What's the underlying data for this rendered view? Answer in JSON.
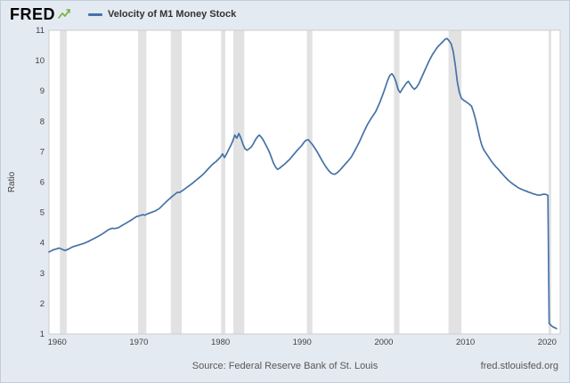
{
  "header": {
    "brand": "FRED"
  },
  "footer": {
    "source": "Source: Federal Reserve Bank of St. Louis",
    "site": "fred.stlouisfed.org"
  },
  "colors": {
    "page_bg": "#e4eaf2",
    "plot_bg": "#ffffff",
    "plot_border": "#cccccc",
    "recession_band": "#e2e2e2",
    "line": "#4572a7",
    "tick_text": "#404040",
    "brand_green": "#7ab648"
  },
  "chart_data": {
    "type": "line",
    "title": "Velocity of M1 Money Stock",
    "ylabel": "Ratio",
    "xlabel": "",
    "xlim": [
      1959,
      2021.6
    ],
    "ylim": [
      1,
      11
    ],
    "yticks": [
      1,
      2,
      3,
      4,
      5,
      6,
      7,
      8,
      9,
      10,
      11
    ],
    "xticks": [
      1960,
      1970,
      1980,
      1990,
      2000,
      2010,
      2020
    ],
    "grid": false,
    "legend_position": "top-header",
    "recessions": [
      [
        1960.33,
        1961.17
      ],
      [
        1969.92,
        1970.92
      ],
      [
        1973.92,
        1975.25
      ],
      [
        1980.08,
        1980.58
      ],
      [
        1981.58,
        1982.92
      ],
      [
        1990.58,
        1991.25
      ],
      [
        2001.25,
        2001.92
      ],
      [
        2007.92,
        2009.5
      ],
      [
        2020.17,
        2020.42
      ]
    ],
    "series": [
      {
        "name": "Velocity of M1 Money Stock",
        "color": "#4572a7",
        "points": [
          [
            1959.0,
            3.7
          ],
          [
            1959.25,
            3.73
          ],
          [
            1959.5,
            3.77
          ],
          [
            1959.75,
            3.79
          ],
          [
            1960.0,
            3.81
          ],
          [
            1960.25,
            3.83
          ],
          [
            1960.5,
            3.8
          ],
          [
            1960.75,
            3.77
          ],
          [
            1961.0,
            3.75
          ],
          [
            1961.25,
            3.78
          ],
          [
            1961.5,
            3.81
          ],
          [
            1961.75,
            3.85
          ],
          [
            1962.0,
            3.88
          ],
          [
            1962.5,
            3.92
          ],
          [
            1963.0,
            3.96
          ],
          [
            1963.5,
            4.01
          ],
          [
            1964.0,
            4.07
          ],
          [
            1964.5,
            4.14
          ],
          [
            1965.0,
            4.21
          ],
          [
            1965.5,
            4.29
          ],
          [
            1966.0,
            4.38
          ],
          [
            1966.25,
            4.43
          ],
          [
            1966.5,
            4.46
          ],
          [
            1966.75,
            4.48
          ],
          [
            1967.0,
            4.47
          ],
          [
            1967.5,
            4.5
          ],
          [
            1968.0,
            4.58
          ],
          [
            1968.5,
            4.66
          ],
          [
            1969.0,
            4.74
          ],
          [
            1969.5,
            4.83
          ],
          [
            1969.75,
            4.87
          ],
          [
            1970.0,
            4.89
          ],
          [
            1970.25,
            4.91
          ],
          [
            1970.5,
            4.93
          ],
          [
            1970.75,
            4.91
          ],
          [
            1971.0,
            4.95
          ],
          [
            1971.5,
            5.0
          ],
          [
            1972.0,
            5.05
          ],
          [
            1972.5,
            5.13
          ],
          [
            1973.0,
            5.26
          ],
          [
            1973.5,
            5.39
          ],
          [
            1974.0,
            5.51
          ],
          [
            1974.5,
            5.62
          ],
          [
            1974.75,
            5.67
          ],
          [
            1975.0,
            5.66
          ],
          [
            1975.5,
            5.75
          ],
          [
            1976.0,
            5.85
          ],
          [
            1976.5,
            5.95
          ],
          [
            1977.0,
            6.06
          ],
          [
            1977.5,
            6.17
          ],
          [
            1978.0,
            6.29
          ],
          [
            1978.5,
            6.44
          ],
          [
            1979.0,
            6.58
          ],
          [
            1979.5,
            6.69
          ],
          [
            1979.75,
            6.76
          ],
          [
            1980.0,
            6.83
          ],
          [
            1980.25,
            6.93
          ],
          [
            1980.5,
            6.81
          ],
          [
            1980.75,
            6.93
          ],
          [
            1981.0,
            7.07
          ],
          [
            1981.25,
            7.2
          ],
          [
            1981.5,
            7.35
          ],
          [
            1981.75,
            7.55
          ],
          [
            1982.0,
            7.45
          ],
          [
            1982.25,
            7.6
          ],
          [
            1982.5,
            7.45
          ],
          [
            1982.75,
            7.25
          ],
          [
            1983.0,
            7.1
          ],
          [
            1983.25,
            7.05
          ],
          [
            1983.5,
            7.1
          ],
          [
            1983.75,
            7.15
          ],
          [
            1984.0,
            7.25
          ],
          [
            1984.25,
            7.38
          ],
          [
            1984.5,
            7.48
          ],
          [
            1984.75,
            7.55
          ],
          [
            1985.0,
            7.48
          ],
          [
            1985.25,
            7.38
          ],
          [
            1985.5,
            7.25
          ],
          [
            1985.75,
            7.12
          ],
          [
            1986.0,
            6.98
          ],
          [
            1986.25,
            6.8
          ],
          [
            1986.5,
            6.62
          ],
          [
            1986.75,
            6.5
          ],
          [
            1987.0,
            6.42
          ],
          [
            1987.25,
            6.46
          ],
          [
            1987.5,
            6.52
          ],
          [
            1987.75,
            6.57
          ],
          [
            1988.0,
            6.63
          ],
          [
            1988.5,
            6.76
          ],
          [
            1989.0,
            6.92
          ],
          [
            1989.5,
            7.08
          ],
          [
            1990.0,
            7.22
          ],
          [
            1990.25,
            7.32
          ],
          [
            1990.5,
            7.38
          ],
          [
            1990.75,
            7.4
          ],
          [
            1991.0,
            7.32
          ],
          [
            1991.25,
            7.24
          ],
          [
            1991.5,
            7.14
          ],
          [
            1991.75,
            7.04
          ],
          [
            1992.0,
            6.92
          ],
          [
            1992.25,
            6.8
          ],
          [
            1992.5,
            6.68
          ],
          [
            1992.75,
            6.57
          ],
          [
            1993.0,
            6.47
          ],
          [
            1993.25,
            6.38
          ],
          [
            1993.5,
            6.31
          ],
          [
            1993.75,
            6.27
          ],
          [
            1994.0,
            6.26
          ],
          [
            1994.25,
            6.3
          ],
          [
            1994.5,
            6.36
          ],
          [
            1994.75,
            6.43
          ],
          [
            1995.0,
            6.51
          ],
          [
            1995.5,
            6.66
          ],
          [
            1996.0,
            6.82
          ],
          [
            1996.5,
            7.06
          ],
          [
            1997.0,
            7.32
          ],
          [
            1997.5,
            7.62
          ],
          [
            1998.0,
            7.9
          ],
          [
            1998.5,
            8.12
          ],
          [
            1999.0,
            8.32
          ],
          [
            1999.5,
            8.62
          ],
          [
            2000.0,
            8.97
          ],
          [
            2000.25,
            9.17
          ],
          [
            2000.5,
            9.37
          ],
          [
            2000.75,
            9.52
          ],
          [
            2001.0,
            9.57
          ],
          [
            2001.25,
            9.47
          ],
          [
            2001.5,
            9.3
          ],
          [
            2001.75,
            9.05
          ],
          [
            2002.0,
            8.95
          ],
          [
            2002.25,
            9.06
          ],
          [
            2002.5,
            9.16
          ],
          [
            2002.75,
            9.26
          ],
          [
            2003.0,
            9.32
          ],
          [
            2003.25,
            9.22
          ],
          [
            2003.5,
            9.12
          ],
          [
            2003.75,
            9.06
          ],
          [
            2004.0,
            9.12
          ],
          [
            2004.25,
            9.22
          ],
          [
            2004.5,
            9.37
          ],
          [
            2004.75,
            9.52
          ],
          [
            2005.0,
            9.67
          ],
          [
            2005.25,
            9.82
          ],
          [
            2005.5,
            9.97
          ],
          [
            2005.75,
            10.1
          ],
          [
            2006.0,
            10.22
          ],
          [
            2006.25,
            10.32
          ],
          [
            2006.5,
            10.42
          ],
          [
            2006.75,
            10.5
          ],
          [
            2007.0,
            10.56
          ],
          [
            2007.25,
            10.63
          ],
          [
            2007.5,
            10.7
          ],
          [
            2007.75,
            10.73
          ],
          [
            2008.0,
            10.65
          ],
          [
            2008.25,
            10.55
          ],
          [
            2008.5,
            10.3
          ],
          [
            2008.75,
            9.85
          ],
          [
            2009.0,
            9.3
          ],
          [
            2009.25,
            8.95
          ],
          [
            2009.5,
            8.76
          ],
          [
            2009.75,
            8.7
          ],
          [
            2010.0,
            8.66
          ],
          [
            2010.25,
            8.61
          ],
          [
            2010.5,
            8.56
          ],
          [
            2010.75,
            8.5
          ],
          [
            2011.0,
            8.3
          ],
          [
            2011.25,
            8.05
          ],
          [
            2011.5,
            7.76
          ],
          [
            2011.75,
            7.46
          ],
          [
            2012.0,
            7.21
          ],
          [
            2012.25,
            7.06
          ],
          [
            2012.5,
            6.96
          ],
          [
            2012.75,
            6.86
          ],
          [
            2013.0,
            6.76
          ],
          [
            2013.25,
            6.66
          ],
          [
            2013.5,
            6.58
          ],
          [
            2013.75,
            6.5
          ],
          [
            2014.0,
            6.43
          ],
          [
            2014.25,
            6.35
          ],
          [
            2014.5,
            6.28
          ],
          [
            2014.75,
            6.2
          ],
          [
            2015.0,
            6.13
          ],
          [
            2015.25,
            6.06
          ],
          [
            2015.5,
            6.0
          ],
          [
            2015.75,
            5.95
          ],
          [
            2016.0,
            5.9
          ],
          [
            2016.25,
            5.86
          ],
          [
            2016.5,
            5.81
          ],
          [
            2016.75,
            5.78
          ],
          [
            2017.0,
            5.75
          ],
          [
            2017.25,
            5.72
          ],
          [
            2017.5,
            5.7
          ],
          [
            2017.75,
            5.67
          ],
          [
            2018.0,
            5.65
          ],
          [
            2018.25,
            5.62
          ],
          [
            2018.5,
            5.6
          ],
          [
            2018.75,
            5.58
          ],
          [
            2019.0,
            5.57
          ],
          [
            2019.25,
            5.58
          ],
          [
            2019.5,
            5.6
          ],
          [
            2019.75,
            5.6
          ],
          [
            2020.0,
            5.58
          ],
          [
            2020.1,
            5.56
          ],
          [
            2020.25,
            1.35
          ],
          [
            2020.5,
            1.28
          ],
          [
            2020.75,
            1.23
          ],
          [
            2021.0,
            1.2
          ],
          [
            2021.15,
            1.18
          ]
        ]
      }
    ]
  }
}
